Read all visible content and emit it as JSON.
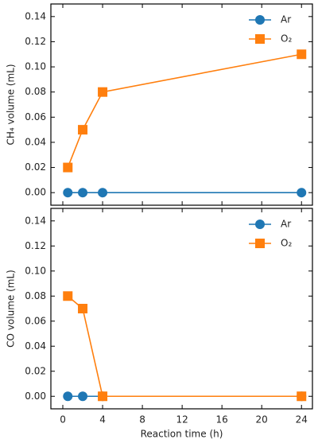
{
  "chart_data": [
    {
      "type": "line",
      "ylabel": "CH₄ volume (mL)",
      "x": [
        0.5,
        2,
        4,
        24
      ],
      "series": [
        {
          "name": "Ar",
          "color": "#1f77b4",
          "marker": "circle",
          "values": [
            0,
            0,
            0,
            0
          ]
        },
        {
          "name": "O₂",
          "color": "#ff7f0e",
          "marker": "square",
          "values": [
            0.02,
            0.05,
            0.08,
            0.11
          ]
        }
      ],
      "xlim": [
        -1.2,
        25.1
      ],
      "ylim": [
        -0.01,
        0.15
      ],
      "xticks": [
        0,
        4,
        8,
        12,
        16,
        20,
        24
      ],
      "yticks": [
        {
          "value": 0,
          "label": "0.00"
        },
        {
          "value": 0.02,
          "label": "0.02"
        },
        {
          "value": 0.04,
          "label": "0.04"
        },
        {
          "value": 0.06,
          "label": "0.06"
        },
        {
          "value": 0.08,
          "label": "0.08"
        },
        {
          "value": 0.1,
          "label": "0.10"
        },
        {
          "value": 0.12,
          "label": "0.12"
        },
        {
          "value": 0.14,
          "label": "0.14"
        }
      ],
      "legend": "upper right"
    },
    {
      "type": "line",
      "ylabel": "CO volume (mL)",
      "xlabel": "Reaction time (h)",
      "x": [
        0.5,
        2,
        4,
        24
      ],
      "series": [
        {
          "name": "Ar",
          "color": "#1f77b4",
          "marker": "circle",
          "values": [
            0,
            0,
            0,
            0
          ]
        },
        {
          "name": "O₂",
          "color": "#ff7f0e",
          "marker": "square",
          "values": [
            0.08,
            0.07,
            0,
            0
          ]
        }
      ],
      "xlim": [
        -1.2,
        25.1
      ],
      "ylim": [
        -0.01,
        0.15
      ],
      "xticks": [
        0,
        4,
        8,
        12,
        16,
        20,
        24
      ],
      "yticks": [
        {
          "value": 0,
          "label": "0.00"
        },
        {
          "value": 0.02,
          "label": "0.02"
        },
        {
          "value": 0.04,
          "label": "0.04"
        },
        {
          "value": 0.06,
          "label": "0.06"
        },
        {
          "value": 0.08,
          "label": "0.08"
        },
        {
          "value": 0.1,
          "label": "0.10"
        },
        {
          "value": 0.12,
          "label": "0.12"
        },
        {
          "value": 0.14,
          "label": "0.14"
        }
      ],
      "legend": "upper right"
    }
  ]
}
